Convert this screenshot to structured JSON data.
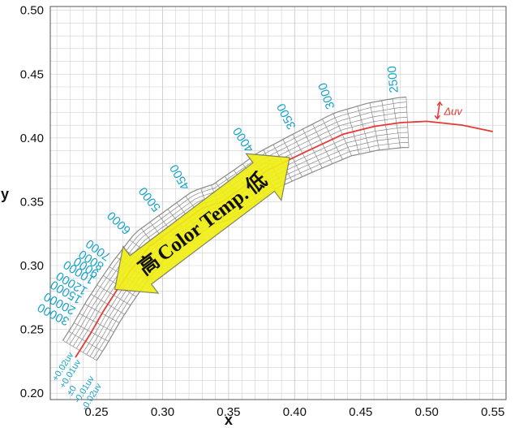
{
  "chart_data": {
    "type": "line",
    "title": "",
    "xlabel": "x",
    "ylabel": "y",
    "xlim": [
      0.215,
      0.56
    ],
    "ylim": [
      0.195,
      0.503
    ],
    "x_ticks": [
      "0.25",
      "0.30",
      "0.35",
      "0.40",
      "0.45",
      "0.50",
      "0.55"
    ],
    "y_ticks": [
      "0.20",
      "0.25",
      "0.30",
      "0.35",
      "0.40",
      "0.45",
      "0.50"
    ],
    "grid": true,
    "series": [
      {
        "color": "#e53935",
        "x": [
          0.234,
          0.245,
          0.255,
          0.265,
          0.275,
          0.29,
          0.31,
          0.33,
          0.345,
          0.38,
          0.41,
          0.437,
          0.46,
          0.48,
          0.5,
          0.527,
          0.55
        ],
        "y": [
          0.228,
          0.246,
          0.264,
          0.28,
          0.295,
          0.315,
          0.33,
          0.345,
          0.35,
          0.375,
          0.39,
          0.403,
          0.409,
          0.412,
          0.413,
          0.41,
          0.405
        ]
      }
    ],
    "isotherms": [
      {
        "label": "30000",
        "x": 0.245,
        "y": 0.25,
        "duv": 0.015
      },
      {
        "label": "20000",
        "x": 0.25,
        "y": 0.258,
        "duv": 0.015
      },
      {
        "label": "15000",
        "x": 0.255,
        "y": 0.265,
        "duv": 0.015
      },
      {
        "label": "12000",
        "x": 0.26,
        "y": 0.272,
        "duv": 0.015
      },
      {
        "label": "10000",
        "x": 0.265,
        "y": 0.28,
        "duv": 0.015
      },
      {
        "label": "9000",
        "x": 0.268,
        "y": 0.285,
        "duv": 0.015
      },
      {
        "label": "8000",
        "x": 0.272,
        "y": 0.29,
        "duv": 0.015
      },
      {
        "label": "7000",
        "x": 0.276,
        "y": 0.297,
        "duv": 0.015
      },
      {
        "label": "6000",
        "x": 0.29,
        "y": 0.315,
        "duv": 0.015
      },
      {
        "label": "5000",
        "x": 0.31,
        "y": 0.33,
        "duv": 0.015
      },
      {
        "label": "4500",
        "x": 0.33,
        "y": 0.345,
        "duv": 0.015
      },
      {
        "label": "4000",
        "x": 0.38,
        "y": 0.375,
        "duv": 0.015
      },
      {
        "label": "3500",
        "x": 0.41,
        "y": 0.39,
        "duv": 0.015
      },
      {
        "label": "3000",
        "x": 0.437,
        "y": 0.403,
        "duv": 0.02
      },
      {
        "label": "2500",
        "x": 0.48,
        "y": 0.412,
        "duv": 0.025
      }
    ],
    "duv_labels": [
      "+0.02uv",
      "+0.01uv",
      "±0",
      "-0.01uv",
      "-0.02uv"
    ],
    "annotations": {
      "arrow_text": "Color Temp.",
      "high_label": "高",
      "low_label": "低",
      "delta_uv_label": "Δuv"
    },
    "colors": {
      "locus": "#e53935",
      "mesh": "#8a8a8a",
      "cct_labels": "#1aa3c9",
      "arrow_fill": "#f0ee16",
      "arrow_stroke": "#7a7a5a",
      "grid": "#cfcfcf",
      "background": "#ffffff"
    }
  }
}
